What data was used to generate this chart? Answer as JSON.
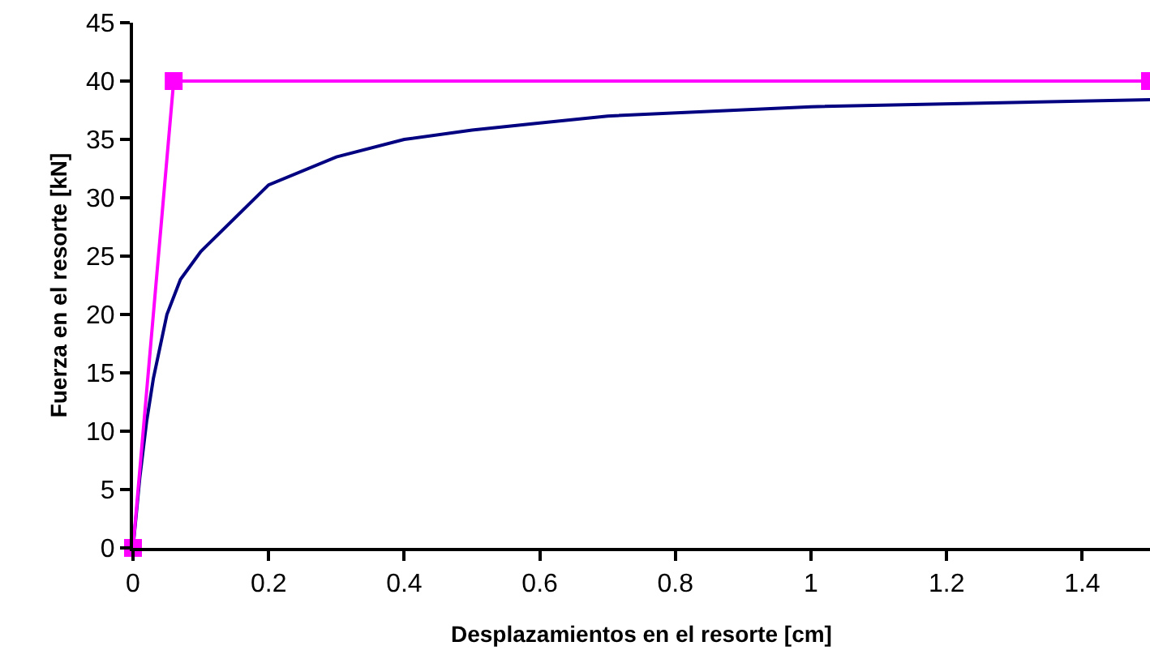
{
  "chart_data": {
    "type": "line",
    "xlabel": "Desplazamientos en el resorte [cm]",
    "ylabel": "Fuerza en el resorte [kN]",
    "xlim": [
      0,
      1.5
    ],
    "xticks": [
      {
        "value": 0,
        "label": "0"
      },
      {
        "value": 0.2,
        "label": "0.2"
      },
      {
        "value": 0.4,
        "label": "0.4"
      },
      {
        "value": 0.6,
        "label": "0.6"
      },
      {
        "value": 0.8,
        "label": "0.8"
      },
      {
        "value": 1,
        "label": "1"
      },
      {
        "value": 1.2,
        "label": "1.2"
      },
      {
        "value": 1.4,
        "label": "1.4"
      }
    ],
    "ylim": [
      0,
      45
    ],
    "yticks": [
      0,
      5,
      10,
      15,
      20,
      25,
      30,
      35,
      40,
      45
    ],
    "grid": false,
    "series": [
      {
        "color": "#000080",
        "marker": "none",
        "x": [
          0,
          0.01,
          0.02,
          0.03,
          0.05,
          0.07,
          0.1,
          0.2,
          0.3,
          0.4,
          0.5,
          0.6,
          0.7,
          1.0,
          1.5
        ],
        "values": [
          0,
          6,
          10.8,
          14.5,
          20,
          23,
          25.4,
          31.1,
          33.5,
          35,
          35.8,
          36.4,
          37,
          37.8,
          38.4
        ]
      },
      {
        "color": "#ff00ff",
        "marker": "square",
        "x": [
          0,
          0.06,
          1.5
        ],
        "values": [
          0,
          40,
          40
        ]
      }
    ]
  }
}
